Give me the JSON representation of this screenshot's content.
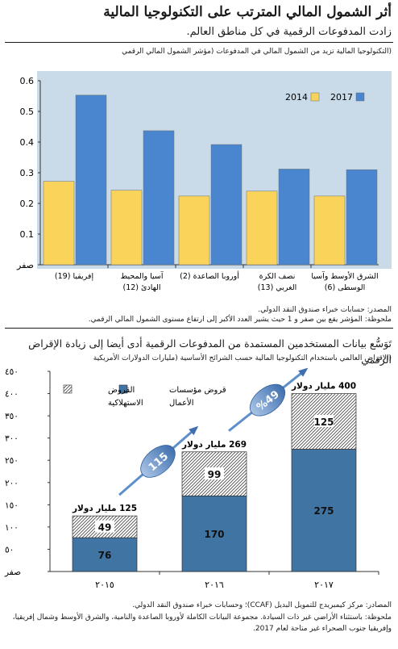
{
  "title": "أثر الشمول المالي المترتب على التكنولوجيا المالية",
  "subtitle": "زادت المدفوعات الرقمية في كل مناطق العالم.",
  "charts": [
    {
      "type": "bar",
      "caption": "(التكنولوجيا المالية تزيد من الشمول المالي في المدفوعات (مؤشر الشمول المالي الرقمي",
      "categories": [
        "إفريقيا (19)",
        "آسيا والمحيط الهادئ (12)",
        "أوروبا الصاعدة (2)",
        "نصف الكرة الغربي (13)",
        "الشرق الأوسط وآسيا الوسطى (6)"
      ],
      "series": [
        {
          "name": "2014",
          "color": "#fad45a",
          "values": [
            0.272,
            0.243,
            0.224,
            0.24,
            0.224
          ]
        },
        {
          "name": "2017",
          "color": "#4a86cf",
          "values": [
            0.553,
            0.437,
            0.392,
            0.312,
            0.31
          ]
        }
      ],
      "y_ticks": [
        "صفر",
        "0.1",
        "0.2",
        "0.3",
        "0.4",
        "0.5",
        "0.6"
      ],
      "ylim": [
        0,
        0.6
      ],
      "legend_position": "top-right",
      "source": "المصدر: حسابات خبراء صندوق النقد الدولي.",
      "note": "ملحوظة: المؤشر يقع بين صفر و 1 حيث يشير العدد الأكبر إلى ارتفاع مستوى الشمول المالي الرقمي."
    },
    {
      "type": "bar",
      "title": "تَوَسُّع بيانات المستخدمين المستمدة من المدفوعات الرقمية أدى أيضا إلى زيادة الإقراض الرقمي",
      "caption": "(الإقراض العالمي باستخدام التكنولوجيا المالية حسب الشرائح الأساسية (مليارات الدولارات الأمريكية",
      "categories": [
        "٢٠١٥",
        "٢٠١٦",
        "٢٠١٧"
      ],
      "series": [
        {
          "name": "قروض مؤسسات الأعمال",
          "color": "#3f74a3",
          "values": [
            76,
            170,
            275
          ]
        },
        {
          "name": "القروض الاستهلاكية",
          "color": "#ffffff",
          "pattern": "hatch",
          "values": [
            49,
            99,
            125
          ]
        }
      ],
      "totals": [
        "125 مليار دولار",
        "269 مليار دولار",
        "400 مليار دولار"
      ],
      "growth_labels": [
        "115",
        "%49"
      ],
      "y_ticks": [
        "صفر",
        "٥٠",
        "١٠٠",
        "١٥٠",
        "٢٠٠",
        "٢٥٠",
        "٣٠٠",
        "٣٥٠",
        "٤٠٠",
        "٤٥٠"
      ],
      "ylim": [
        0,
        450
      ],
      "legend_position": "top-left",
      "source": "المصادر: مركز كيمبريدج للتمويل البديل (CCAF)؛ وحسابات خبراء صندوق النقد الدولي.",
      "note": "ملحوظة: باستثناء الأراضي غير ذات السيادة. مجموعة البيانات الكاملة لأوروبا الصاعدة والنامية، والشرق الأوسط وشمال إفريقيا، وإفريقيا جنوب الصحراء غير متاحة لعام 2017."
    }
  ]
}
